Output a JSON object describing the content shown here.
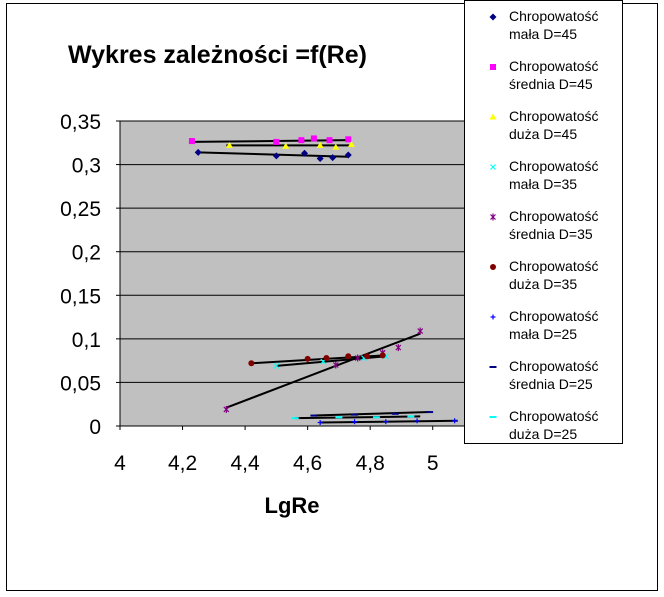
{
  "chart_data": {
    "type": "scatter",
    "title": "Wykres zależności  =f(Re)",
    "xlabel": "LgRe",
    "ylabel": "",
    "xlim": [
      4,
      5.1
    ],
    "ylim": [
      0,
      0.35
    ],
    "x_ticks": [
      "4",
      "4,2",
      "4,4",
      "4,6",
      "4,8",
      "5"
    ],
    "y_ticks": [
      "0",
      "0,05",
      "0,1",
      "0,15",
      "0,2",
      "0,25",
      "0,3",
      "0,35"
    ],
    "grid": "horizontal",
    "legend_position": "right",
    "plot_background": "#c0c0c0",
    "series": [
      {
        "name": "Chropowatość mała D=45",
        "color": "#000080",
        "marker": "diamond",
        "points": [
          [
            4.25,
            0.314
          ],
          [
            4.5,
            0.31
          ],
          [
            4.59,
            0.313
          ],
          [
            4.64,
            0.307
          ],
          [
            4.68,
            0.308
          ],
          [
            4.73,
            0.311
          ]
        ],
        "trend": [
          [
            4.25,
            0.314
          ],
          [
            4.73,
            0.309
          ]
        ]
      },
      {
        "name": "Chropowatość średnia D=45",
        "color": "#ff00ff",
        "marker": "square",
        "points": [
          [
            4.23,
            0.327
          ],
          [
            4.5,
            0.326
          ],
          [
            4.58,
            0.328
          ],
          [
            4.62,
            0.33
          ],
          [
            4.67,
            0.328
          ],
          [
            4.73,
            0.329
          ]
        ],
        "trend": [
          [
            4.23,
            0.326
          ],
          [
            4.73,
            0.328
          ]
        ]
      },
      {
        "name": "Chropowatość duża D=45",
        "color": "#ffff00",
        "marker": "triangle",
        "points": [
          [
            4.35,
            0.322
          ],
          [
            4.53,
            0.321
          ],
          [
            4.64,
            0.322
          ],
          [
            4.69,
            0.32
          ],
          [
            4.74,
            0.323
          ]
        ],
        "trend": [
          [
            4.34,
            0.322
          ],
          [
            4.74,
            0.322
          ]
        ]
      },
      {
        "name": "Chropowatość mała D=35",
        "color": "#00ffff",
        "marker": "x",
        "points": [
          [
            4.5,
            0.069
          ],
          [
            4.65,
            0.074
          ],
          [
            4.78,
            0.078
          ],
          [
            4.85,
            0.08
          ]
        ],
        "trend": [
          [
            4.5,
            0.069
          ],
          [
            4.85,
            0.08
          ]
        ]
      },
      {
        "name": "Chropowatość średnia D=35",
        "color": "#800080",
        "marker": "star",
        "points": [
          [
            4.34,
            0.019
          ],
          [
            4.69,
            0.07
          ],
          [
            4.76,
            0.078
          ],
          [
            4.84,
            0.084
          ],
          [
            4.89,
            0.09
          ],
          [
            4.96,
            0.109
          ]
        ],
        "trend": [
          [
            4.34,
            0.021
          ],
          [
            4.96,
            0.106
          ]
        ]
      },
      {
        "name": "Chropowatość duża D=35",
        "color": "#800000",
        "marker": "circle",
        "points": [
          [
            4.42,
            0.072
          ],
          [
            4.6,
            0.077
          ],
          [
            4.66,
            0.078
          ],
          [
            4.73,
            0.08
          ],
          [
            4.79,
            0.08
          ],
          [
            4.84,
            0.081
          ]
        ],
        "trend": [
          [
            4.42,
            0.072
          ],
          [
            4.84,
            0.081
          ]
        ]
      },
      {
        "name": "Chropowatość mała D=25",
        "color": "#0000ff",
        "marker": "plus",
        "points": [
          [
            4.64,
            0.004
          ],
          [
            4.75,
            0.005
          ],
          [
            4.85,
            0.005
          ],
          [
            4.95,
            0.006
          ],
          [
            5.07,
            0.006
          ]
        ],
        "trend": [
          [
            4.64,
            0.004
          ],
          [
            5.08,
            0.006
          ]
        ]
      },
      {
        "name": "Chropowatość średnia D=25",
        "color": "#000080",
        "marker": "dash",
        "points": [
          [
            4.62,
            0.012
          ],
          [
            4.75,
            0.013
          ],
          [
            4.88,
            0.014
          ],
          [
            4.99,
            0.016
          ]
        ],
        "trend": [
          [
            4.62,
            0.012
          ],
          [
            4.99,
            0.016
          ]
        ]
      },
      {
        "name": "Chropowatość duża D=25",
        "color": "#00ffff",
        "marker": "dash",
        "points": [
          [
            4.56,
            0.009
          ],
          [
            4.7,
            0.01
          ],
          [
            4.82,
            0.01
          ],
          [
            4.93,
            0.011
          ]
        ],
        "trend": [
          [
            4.56,
            0.009
          ],
          [
            4.96,
            0.011
          ]
        ]
      }
    ]
  },
  "legend": [
    {
      "line1": "Chropowatość",
      "line2": "mała D=45"
    },
    {
      "line1": "Chropowatość",
      "line2": "średnia D=45"
    },
    {
      "line1": "Chropowatość",
      "line2": "duża D=45"
    },
    {
      "line1": "Chropowatość",
      "line2": "mała D=35"
    },
    {
      "line1": "Chropowatość",
      "line2": "średnia D=35"
    },
    {
      "line1": "Chropowatość",
      "line2": "duża D=35"
    },
    {
      "line1": "Chropowatość",
      "line2": "mała D=25"
    },
    {
      "line1": "Chropowatość",
      "line2": "średnia D=25"
    },
    {
      "line1": "Chropowatość",
      "line2": "duża D=25"
    }
  ]
}
